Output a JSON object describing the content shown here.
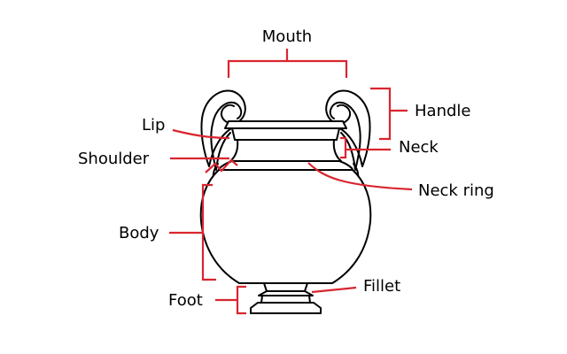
{
  "diagram": {
    "labels": {
      "mouth": "Mouth",
      "handle": "Handle",
      "lip": "Lip",
      "neck": "Neck",
      "shoulder": "Shoulder",
      "neck_ring": "Neck ring",
      "body": "Body",
      "fillet": "Fillet",
      "foot": "Foot"
    },
    "colors": {
      "leader": "#d9252f",
      "outline": "#000000",
      "background": "#ffffff"
    }
  }
}
